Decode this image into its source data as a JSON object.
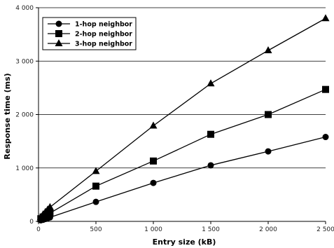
{
  "chart_data": {
    "type": "line",
    "xlabel": "Entry size (kB)",
    "ylabel": "Response time (ms)",
    "xlim": [
      0,
      2500
    ],
    "ylim": [
      0,
      4000
    ],
    "x_ticks": [
      0,
      500,
      1000,
      1500,
      2000,
      2500
    ],
    "y_ticks": [
      0,
      1000,
      2000,
      3000,
      4000
    ],
    "x_tick_labels": [
      "0",
      "500",
      "1 000",
      "1 500",
      "2 000",
      "2 500"
    ],
    "y_tick_labels": [
      "0",
      "1 000",
      "2 000",
      "3 000",
      "4 000"
    ],
    "grid": "horizontal",
    "legend_position": "top-left",
    "x": [
      20,
      40,
      60,
      80,
      100,
      500,
      1000,
      1500,
      2000,
      2500
    ],
    "series": [
      {
        "name": "1-hop neighbor",
        "marker": "circle",
        "values": [
          20,
          30,
          45,
          60,
          75,
          365,
          720,
          1050,
          1310,
          1580
        ]
      },
      {
        "name": "2-hop neighbor",
        "marker": "square",
        "values": [
          50,
          80,
          105,
          130,
          155,
          660,
          1130,
          1630,
          2000,
          2470
        ]
      },
      {
        "name": "3-hop neighbor",
        "marker": "triangle",
        "values": [
          80,
          130,
          175,
          220,
          265,
          940,
          1790,
          2580,
          3200,
          3800
        ]
      }
    ]
  }
}
